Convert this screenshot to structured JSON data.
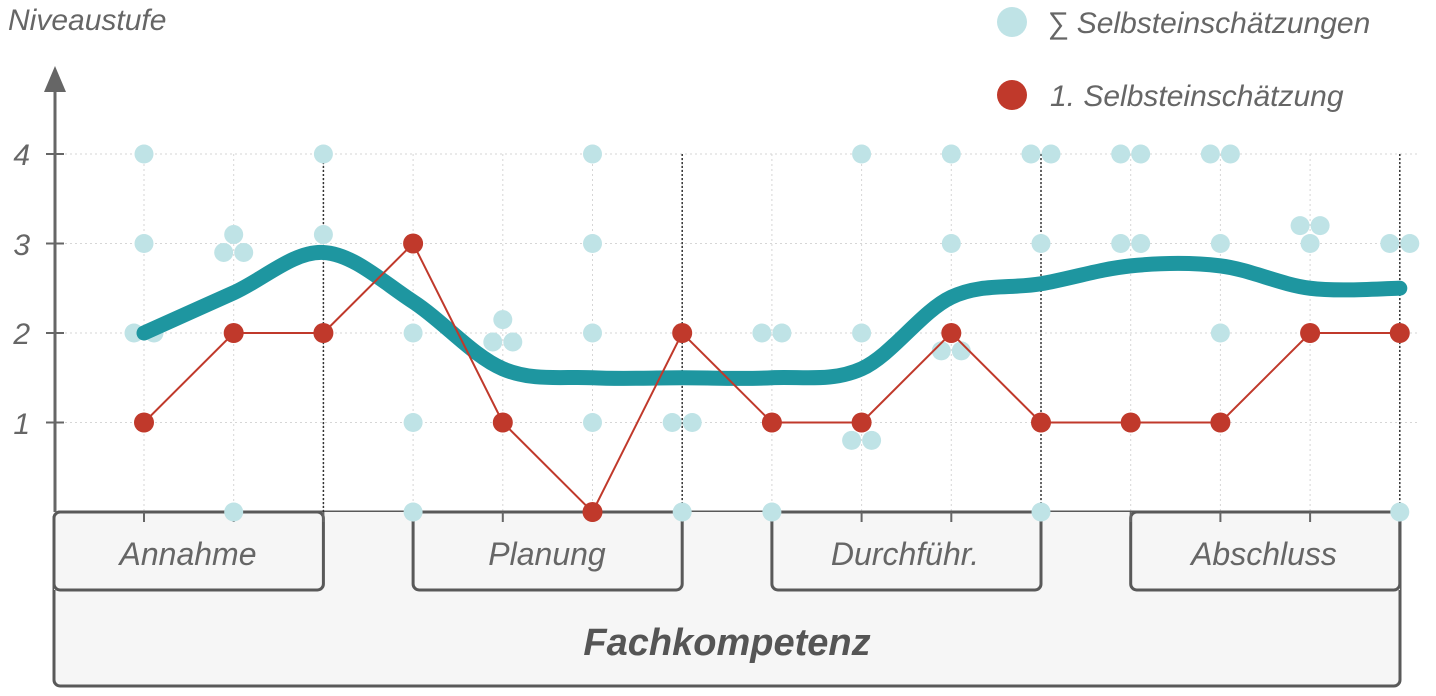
{
  "chart_data": {
    "type": "line",
    "ylabel": "Niveaustufe",
    "ylim": [
      0,
      4
    ],
    "yticks": [
      "1",
      "2",
      "3",
      "4"
    ],
    "grid": true,
    "legend_position": "top-right",
    "legend": {
      "sum_label": "∑ Selbsteinschätzungen",
      "first_label": "1. Selbsteinschätzung"
    },
    "phases": [
      {
        "label": "Annahme",
        "from": 1,
        "to": 3
      },
      {
        "label": "Planung",
        "from": 4,
        "to": 7
      },
      {
        "label": "Durchführ.",
        "from": 8,
        "to": 11
      },
      {
        "label": "Abschluss",
        "from": 12,
        "to": 15
      }
    ],
    "phase_dividers": [
      3,
      7,
      11,
      15
    ],
    "domain_label": "Fachkompetenz",
    "x": [
      1,
      2,
      3,
      4,
      5,
      6,
      7,
      8,
      9,
      10,
      11,
      12,
      13,
      14,
      15
    ],
    "series": [
      {
        "name": "∑ Selbsteinschätzungen",
        "role": "average",
        "color": "#1e96a0",
        "values": [
          2.0,
          2.45,
          2.9,
          2.35,
          1.6,
          1.5,
          1.5,
          1.5,
          1.6,
          2.4,
          2.55,
          2.75,
          2.75,
          2.5,
          2.5
        ]
      },
      {
        "name": "1. Selbsteinschätzung",
        "role": "first",
        "color": "#c0392b",
        "values": [
          1,
          2,
          2,
          3,
          1,
          0,
          2,
          1,
          1,
          2,
          1,
          1,
          1,
          2,
          2
        ]
      }
    ],
    "scatter": {
      "name": "∑ Selbsteinschätzungen",
      "color": "#bfe3e6",
      "points": [
        [
          1,
          4
        ],
        [
          1,
          3
        ],
        [
          1,
          2
        ],
        [
          1,
          2
        ],
        [
          2,
          3.1
        ],
        [
          2,
          2.9
        ],
        [
          2,
          2.9
        ],
        [
          2,
          0
        ],
        [
          3,
          4
        ],
        [
          3,
          3.1
        ],
        [
          3,
          2
        ],
        [
          4,
          3
        ],
        [
          4,
          2
        ],
        [
          4,
          1
        ],
        [
          4,
          0
        ],
        [
          5,
          2.15
        ],
        [
          5,
          1.9
        ],
        [
          5,
          1.9
        ],
        [
          5,
          1
        ],
        [
          6,
          4
        ],
        [
          6,
          3
        ],
        [
          6,
          2
        ],
        [
          6,
          1
        ],
        [
          6,
          0
        ],
        [
          7,
          2
        ],
        [
          7,
          1
        ],
        [
          7,
          1
        ],
        [
          7,
          0
        ],
        [
          8,
          2
        ],
        [
          8,
          2
        ],
        [
          8,
          1
        ],
        [
          8,
          0
        ],
        [
          9,
          4
        ],
        [
          9,
          2
        ],
        [
          9,
          0.8
        ],
        [
          9,
          0.8
        ],
        [
          10,
          4
        ],
        [
          10,
          3
        ],
        [
          10,
          1.8
        ],
        [
          10,
          1.8
        ],
        [
          11,
          4
        ],
        [
          11,
          4
        ],
        [
          11,
          3
        ],
        [
          11,
          0
        ],
        [
          12,
          4
        ],
        [
          12,
          4
        ],
        [
          12,
          3
        ],
        [
          12,
          3
        ],
        [
          13,
          4
        ],
        [
          13,
          4
        ],
        [
          13,
          3
        ],
        [
          13,
          2
        ],
        [
          14,
          3.2
        ],
        [
          14,
          3.2
        ],
        [
          14,
          3
        ],
        [
          14,
          2
        ],
        [
          15,
          3
        ],
        [
          15,
          3
        ],
        [
          15,
          2
        ],
        [
          15,
          0
        ]
      ]
    }
  }
}
